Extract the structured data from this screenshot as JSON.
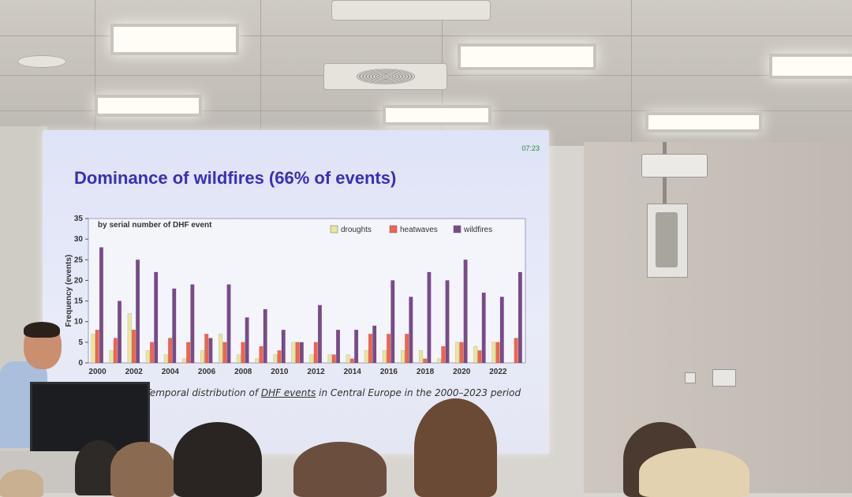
{
  "slide": {
    "title": "Dominance of wildfires (66% of events)",
    "clock": "07:23",
    "caption_pre": "Temporal distribution of ",
    "caption_link": "DHF events",
    "caption_post": " in Central Europe in the 2000–2023 period"
  },
  "chart_data": {
    "type": "bar",
    "subtitle": "by serial number of DHF event",
    "ylabel": "Frequency (events)",
    "ylim": [
      0,
      35
    ],
    "yticks": [
      0,
      5,
      10,
      15,
      20,
      25,
      30,
      35
    ],
    "categories": [
      "2000",
      "2001",
      "2002",
      "2003",
      "2004",
      "2005",
      "2006",
      "2007",
      "2008",
      "2009",
      "2010",
      "2011",
      "2012",
      "2013",
      "2014",
      "2015",
      "2016",
      "2017",
      "2018",
      "2019",
      "2020",
      "2021",
      "2022",
      "2023"
    ],
    "xtick_labels": [
      "2000",
      "2002",
      "2004",
      "2006",
      "2008",
      "2010",
      "2012",
      "2014",
      "2016",
      "2018",
      "2020",
      "2022"
    ],
    "legend_position": "top-right",
    "series": [
      {
        "name": "droughts",
        "color": "#e8e79a",
        "values": [
          7,
          3,
          12,
          3,
          2,
          1,
          3,
          7,
          2,
          1,
          2,
          5,
          2,
          2,
          2,
          3,
          3,
          3,
          3,
          1,
          5,
          4,
          5,
          0
        ]
      },
      {
        "name": "heatwaves",
        "color": "#f0644c",
        "values": [
          8,
          6,
          8,
          5,
          6,
          5,
          7,
          5,
          5,
          4,
          3,
          5,
          5,
          2,
          1,
          7,
          7,
          7,
          1,
          4,
          5,
          3,
          5,
          6
        ]
      },
      {
        "name": "wildfires",
        "color": "#7a4a8a",
        "values": [
          28,
          15,
          25,
          22,
          18,
          19,
          6,
          19,
          11,
          13,
          8,
          5,
          14,
          8,
          8,
          9,
          20,
          16,
          22,
          20,
          25,
          17,
          16,
          22
        ]
      }
    ]
  },
  "room": {
    "icons": [
      "ceiling-light-icon",
      "ceiling-vent-icon",
      "projector-icon",
      "wall-speaker-icon",
      "light-switch-icon"
    ]
  }
}
